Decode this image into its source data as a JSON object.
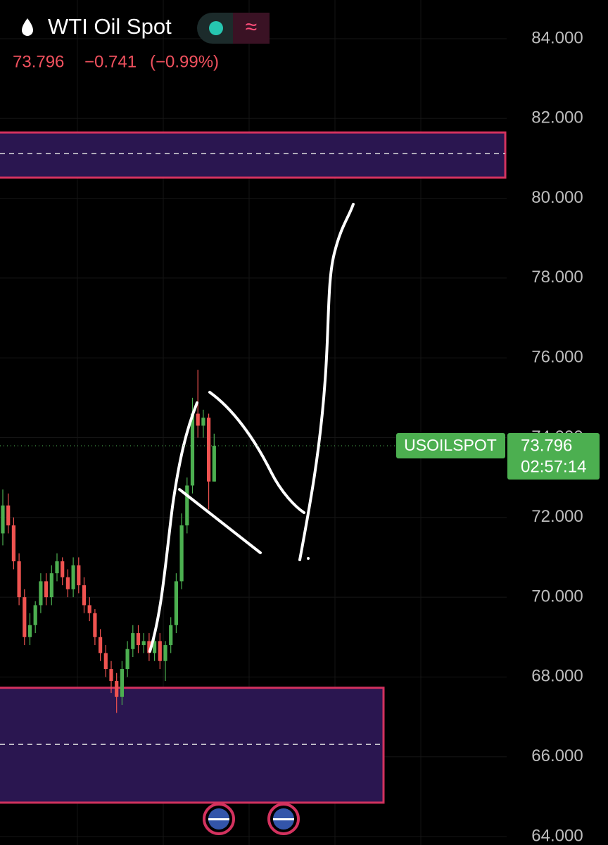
{
  "chart_data": {
    "type": "candlestick",
    "title": "WTI Oil Spot",
    "last_price": 73.796,
    "change": "−0.741",
    "change_pct": "(−0.99%)",
    "symbol_label": "USOILSPOT",
    "countdown": "02:57:14",
    "up_color": "#4caf50",
    "down_color": "#ef5350",
    "ylim": [
      64,
      84
    ],
    "yticks": [
      {
        "value": 64,
        "label": "64.000"
      },
      {
        "value": 66,
        "label": "66.000"
      },
      {
        "value": 68,
        "label": "68.000"
      },
      {
        "value": 70,
        "label": "70.000"
      },
      {
        "value": 72,
        "label": "72.000"
      },
      {
        "value": 74,
        "label": "74.000"
      },
      {
        "value": 76,
        "label": "76.000"
      },
      {
        "value": 78,
        "label": "78.000"
      },
      {
        "value": 80,
        "label": "80.000"
      },
      {
        "value": 82,
        "label": "82.000"
      },
      {
        "value": 84,
        "label": "84.000"
      }
    ],
    "grid": true,
    "zones": [
      {
        "low": 80.52,
        "high": 81.65,
        "mid": 81.12
      },
      {
        "low": 64.85,
        "high": 67.73,
        "mid": 66.31
      }
    ],
    "zone_fill": "#2a1650",
    "zone_border": "#d3325f",
    "open": [
      71.6,
      72.3,
      71.8,
      70.9,
      70.0,
      69.0,
      69.3,
      69.8,
      70.4,
      70.0,
      70.6,
      70.9,
      70.5,
      70.2,
      70.8,
      70.3,
      69.8,
      69.6,
      69.0,
      68.6,
      68.2,
      67.9,
      67.5,
      68.2,
      68.7,
      69.1,
      68.8,
      68.9,
      68.6,
      68.9,
      68.4,
      68.8,
      69.3,
      70.4,
      71.8,
      72.8,
      74.6,
      74.3,
      74.5,
      72.9
    ],
    "high": [
      72.7,
      72.6,
      72.0,
      71.1,
      70.2,
      69.6,
      69.9,
      70.6,
      70.6,
      70.8,
      71.1,
      71.0,
      70.7,
      71.0,
      71.0,
      70.5,
      70.0,
      69.7,
      69.2,
      68.8,
      68.4,
      68.1,
      68.4,
      68.9,
      69.3,
      69.3,
      69.1,
      69.1,
      69.1,
      69.1,
      68.9,
      69.5,
      70.6,
      72.1,
      73.0,
      75.0,
      75.7,
      74.7,
      74.6,
      74.1
    ],
    "low": [
      71.3,
      71.6,
      70.7,
      69.8,
      68.8,
      68.8,
      69.1,
      69.6,
      69.8,
      69.8,
      70.4,
      70.3,
      70.0,
      70.0,
      70.1,
      69.6,
      69.4,
      68.8,
      68.4,
      68.0,
      67.6,
      67.1,
      67.3,
      68.0,
      68.5,
      68.6,
      68.6,
      68.4,
      68.4,
      68.2,
      67.9,
      68.6,
      69.1,
      70.2,
      71.6,
      72.6,
      74.0,
      74.0,
      72.2,
      72.9
    ],
    "close": [
      72.3,
      71.8,
      70.9,
      70.0,
      69.0,
      69.3,
      69.8,
      70.4,
      70.0,
      70.6,
      70.9,
      70.5,
      70.2,
      70.8,
      70.3,
      69.8,
      69.6,
      69.0,
      68.6,
      68.2,
      67.9,
      67.5,
      68.2,
      68.7,
      69.1,
      68.8,
      68.9,
      68.6,
      68.9,
      68.4,
      68.8,
      69.3,
      70.4,
      71.8,
      72.8,
      74.6,
      74.3,
      74.5,
      72.9,
      73.796
    ]
  }
}
